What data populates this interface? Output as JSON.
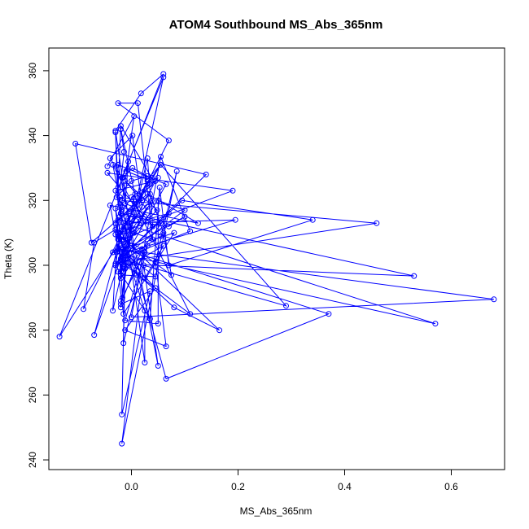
{
  "chart_data": {
    "type": "line",
    "title": "ATOM4 Southbound MS_Abs_365nm",
    "xlabel": "MS_Abs_365nm",
    "ylabel": "Theta (K)",
    "xlim": [
      -0.155,
      0.7
    ],
    "ylim": [
      237,
      367
    ],
    "xticks": [
      0.0,
      0.2,
      0.4,
      0.6
    ],
    "xtick_labels": [
      "0.0",
      "0.2",
      "0.4",
      "0.6"
    ],
    "yticks": [
      240,
      260,
      280,
      300,
      320,
      340,
      360
    ],
    "ytick_labels": [
      "240",
      "260",
      "280",
      "300",
      "320",
      "340",
      "360"
    ],
    "grid": false,
    "legend": "none",
    "series_color": "#0000ff",
    "marker": "open-circle",
    "series": [
      {
        "x": [
          -0.045,
          0.005,
          -0.01,
          0.03,
          0.055,
          0.038,
          -0.02,
          -0.025,
          -0.016,
          0.002,
          0.03,
          0.0,
          -0.028,
          0.018,
          -0.02,
          -0.014,
          -0.025,
          -0.03,
          -0.022,
          -0.006,
          -0.012,
          0.005,
          -0.035,
          -0.018,
          0.007,
          -0.01,
          0.045,
          -0.03,
          -0.02,
          0.055,
          -0.015,
          -0.022,
          0.02,
          -0.012,
          0.048,
          -0.028,
          0.03,
          -0.03,
          -0.018,
          0.07,
          -0.02,
          -0.025,
          0.038,
          -0.014,
          -0.03,
          -0.015,
          0.0,
          -0.017,
          -0.022,
          -0.01,
          -0.02,
          -0.012,
          -0.015,
          0.03,
          -0.02,
          0.025,
          -0.012,
          0.05,
          0.05,
          0.1,
          -0.02,
          0.14,
          -0.105,
          -0.075,
          0.03,
          0.125,
          -0.04,
          -0.02,
          0.11,
          0.0,
          0.035,
          0.05,
          -0.03,
          0.035,
          0.06,
          0.075,
          -0.025,
          0.02,
          -0.02,
          0.035,
          -0.018,
          -0.012,
          0.045,
          -0.012,
          0.065,
          0.045,
          0.085,
          -0.018,
          0.023,
          0.05,
          -0.025,
          0.065,
          0.0,
          0.1,
          0.07,
          -0.025,
          -0.035,
          0.03,
          0.04,
          -0.045,
          0.19,
          -0.03,
          0.025,
          0.06,
          -0.025,
          -0.015,
          0.08,
          -0.035,
          0.57,
          -0.015,
          0.195,
          -0.01,
          0.025,
          0.025,
          -0.018,
          0.46,
          -0.02,
          0.055,
          -0.03,
          0.035,
          0.053,
          0.07,
          0.34,
          0.095,
          -0.03,
          0.53,
          -0.005,
          -0.02,
          0.045,
          -0.025,
          0.68,
          0.0,
          0.055,
          0.11,
          -0.02,
          0.08,
          0.165,
          -0.02,
          -0.07,
          0.03,
          -0.025,
          -0.02,
          0.065,
          0.37,
          -0.015,
          -0.03,
          -0.02,
          0.29,
          0.055,
          -0.022,
          0.005,
          0.04,
          0.012,
          -0.025,
          0.07,
          -0.09,
          -0.07,
          -0.03,
          0.01,
          -0.03,
          0.018,
          0.06,
          -0.135,
          0.02,
          0.002,
          -0.04,
          -0.018,
          0.06,
          -0.02,
          -0.01,
          0.025
        ],
        "y": [
          330.5,
          346,
          329,
          326.5,
          331,
          327,
          343,
          324,
          327,
          330,
          327.5,
          326,
          321,
          313,
          342,
          335,
          318,
          341,
          315,
          332,
          319,
          318,
          331,
          317,
          322,
          309,
          326,
          323,
          316,
          313,
          308,
          321,
          320,
          326,
          317,
          304,
          318,
          300,
          312,
          316,
          296,
          310,
          320,
          304,
          313,
          298,
          311,
          290,
          306,
          301,
          287,
          299,
          276,
          306,
          289,
          304,
          283,
          282,
          320,
          317,
          302,
          328,
          337.5,
          307,
          322,
          313,
          318.5,
          301,
          285,
          321,
          325,
          327,
          313,
          322,
          310,
          297,
          309,
          305,
          288,
          292,
          254,
          303,
          293,
          280,
          275,
          301,
          329,
          245,
          300,
          269,
          331,
          325,
          306,
          315,
          312,
          314,
          286,
          333,
          312,
          328.5,
          323,
          309.5,
          296,
          306,
          298,
          285,
          310,
          304,
          282,
          313,
          314,
          304,
          286,
          270,
          320,
          313,
          301,
          309,
          300,
          283.5,
          324,
          300,
          314,
          320,
          300.5,
          296.7,
          316,
          297,
          296.5,
          305,
          289.5,
          284,
          333.5,
          310.5,
          302,
          287,
          280,
          309,
          278.5,
          326,
          308,
          316,
          265,
          285,
          305,
          317.5,
          302,
          287.5,
          331,
          310,
          310,
          308,
          350,
          350,
          338.5,
          286.5,
          307,
          311,
          297,
          341.5,
          353,
          359,
          278,
          318,
          340,
          333,
          327,
          358,
          298,
          315,
          315
        ]
      }
    ]
  }
}
